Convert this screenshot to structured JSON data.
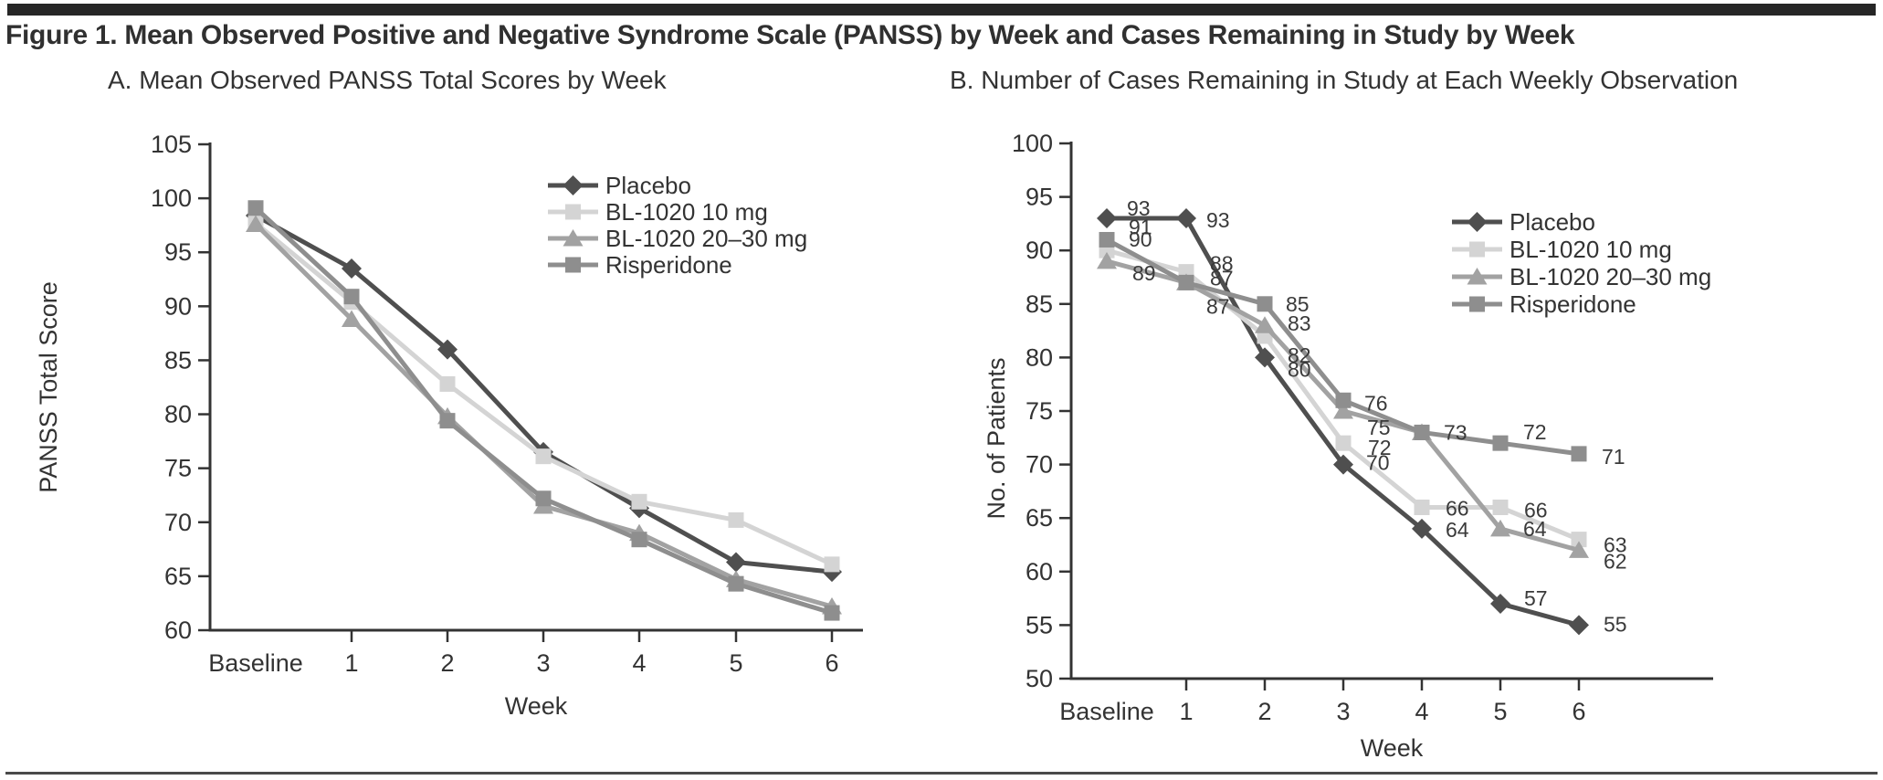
{
  "page": {
    "title": "Figure 1. Mean Observed Positive and Negative Syndrome Scale (PANSS) by Week and Cases Remaining in Study by Week"
  },
  "colors": {
    "placebo": "#4f4f4f",
    "bl10": "#d4d4d4",
    "bl20": "#a2a2a2",
    "risperidone": "#8e8e8e",
    "axis": "#333333",
    "tick_text": "#333333",
    "point_label_text": "#3a3a3a",
    "top_bar": "#262626",
    "bottom_rule": "#4a4a4a"
  },
  "chart_data": [
    {
      "id": "panel-a",
      "type": "line",
      "title": "A. Mean Observed PANSS Total Scores by Week",
      "xlabel": "Week",
      "ylabel": "PANSS Total Score",
      "categories": [
        "Baseline",
        "1",
        "2",
        "3",
        "4",
        "5",
        "6"
      ],
      "ylim": [
        60,
        105
      ],
      "ytick_step": 5,
      "grid": false,
      "legend_position": "top-right-inside",
      "series": [
        {
          "name": "Placebo",
          "marker": "diamond",
          "color_key": "placebo",
          "values": [
            98.4,
            93.5,
            86.0,
            76.5,
            71.3,
            66.3,
            65.4
          ]
        },
        {
          "name": "BL-1020 10 mg",
          "marker": "square",
          "color_key": "bl10",
          "values": [
            97.7,
            90.4,
            82.8,
            76.1,
            71.9,
            70.2,
            66.1
          ]
        },
        {
          "name": "BL-1020 20–30 mg",
          "marker": "triangle",
          "color_key": "bl20",
          "values": [
            97.6,
            88.8,
            79.8,
            71.5,
            69.0,
            64.7,
            62.2
          ]
        },
        {
          "name": "Risperidone",
          "marker": "square",
          "color_key": "risperidone",
          "values": [
            99.1,
            90.9,
            79.4,
            72.2,
            68.4,
            64.3,
            61.6
          ]
        }
      ]
    },
    {
      "id": "panel-b",
      "type": "line",
      "title": "B. Number of Cases Remaining in Study at Each Weekly Observation",
      "xlabel": "Week",
      "ylabel": "No. of Patients",
      "categories": [
        "Baseline",
        "1",
        "2",
        "3",
        "4",
        "5",
        "6"
      ],
      "ylim": [
        50,
        100
      ],
      "ytick_step": 5,
      "grid": false,
      "legend_position": "right-inside",
      "series": [
        {
          "name": "Placebo",
          "marker": "diamond",
          "color_key": "placebo",
          "values": [
            93,
            93,
            80,
            70,
            64,
            57,
            55
          ],
          "point_labels": [
            {
              "i": 0,
              "text": "93",
              "dx": 22,
              "dy": -11
            },
            {
              "i": 1,
              "text": "93",
              "dx": 22,
              "dy": 2
            },
            {
              "i": 2,
              "text": "80",
              "dx": 25,
              "dy": 13
            },
            {
              "i": 3,
              "text": "70",
              "dx": 25,
              "dy": -2
            },
            {
              "i": 4,
              "text": "64",
              "dx": 26,
              "dy": 1
            },
            {
              "i": 5,
              "text": "57",
              "dx": 26,
              "dy": -6
            },
            {
              "i": 6,
              "text": "55",
              "dx": 27,
              "dy": -1
            }
          ]
        },
        {
          "name": "BL-1020 10 mg",
          "marker": "square",
          "color_key": "bl10",
          "values": [
            90,
            88,
            82,
            72,
            66,
            66,
            63
          ],
          "point_labels": [
            {
              "i": 0,
              "text": "90",
              "dx": 24,
              "dy": -12
            },
            {
              "i": 1,
              "text": "88",
              "dx": 26,
              "dy": -9
            },
            {
              "i": 2,
              "text": "82",
              "dx": 25,
              "dy": 21
            },
            {
              "i": 3,
              "text": "72",
              "dx": 27,
              "dy": 5
            },
            {
              "i": 4,
              "text": "66",
              "dx": 26,
              "dy": 1
            },
            {
              "i": 5,
              "text": "66",
              "dx": 26,
              "dy": 3
            },
            {
              "i": 6,
              "text": "63",
              "dx": 27,
              "dy": 6
            }
          ]
        },
        {
          "name": "BL-1020 20–30 mg",
          "marker": "triangle",
          "color_key": "bl20",
          "values": [
            89,
            87,
            83,
            75,
            73,
            64,
            62
          ],
          "point_labels": [
            {
              "i": 0,
              "text": "89",
              "dx": 28,
              "dy": 13
            },
            {
              "i": 1,
              "text": "87",
              "dx": 22,
              "dy": 26
            },
            {
              "i": 2,
              "text": "83",
              "dx": 25,
              "dy": -2
            },
            {
              "i": 3,
              "text": "75",
              "dx": 26,
              "dy": 18
            },
            {
              "i": 5,
              "text": "64",
              "dx": 25,
              "dy": 0
            },
            {
              "i": 6,
              "text": "62",
              "dx": 27,
              "dy": 12
            }
          ]
        },
        {
          "name": "Risperidone",
          "marker": "square",
          "color_key": "risperidone",
          "values": [
            91,
            87,
            85,
            76,
            73,
            72,
            71
          ],
          "point_labels": [
            {
              "i": 0,
              "text": "91",
              "dx": 24,
              "dy": -14
            },
            {
              "i": 1,
              "text": "87",
              "dx": 26,
              "dy": -5
            },
            {
              "i": 2,
              "text": "85",
              "dx": 23,
              "dy": 0
            },
            {
              "i": 3,
              "text": "76",
              "dx": 23,
              "dy": 3
            },
            {
              "i": 4,
              "text": "73",
              "dx": 24,
              "dy": 0
            },
            {
              "i": 5,
              "text": "72",
              "dx": 25,
              "dy": -12
            },
            {
              "i": 6,
              "text": "71",
              "dx": 25,
              "dy": 3
            }
          ]
        }
      ]
    }
  ]
}
